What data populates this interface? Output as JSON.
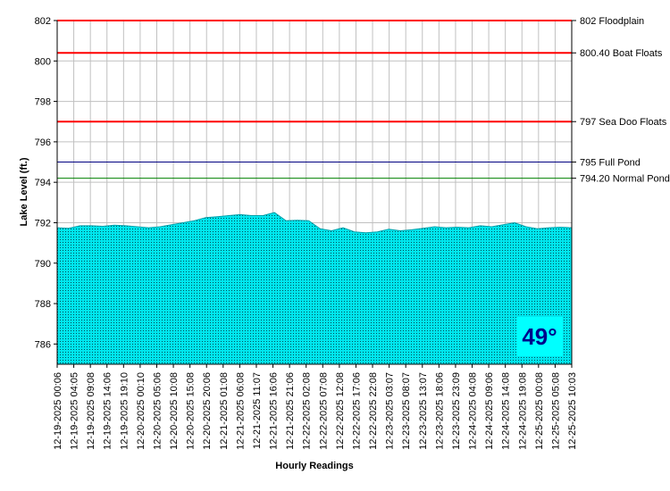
{
  "chart_data": {
    "type": "area",
    "title": "",
    "xlabel": "Hourly Readings",
    "ylabel": "Lake Level (ft.)",
    "ylim": [
      785,
      802
    ],
    "yticks": [
      786,
      788,
      790,
      792,
      794,
      796,
      798,
      800,
      802
    ],
    "grid": true,
    "colors": {
      "fill": "#00e6ee",
      "stipple": "#00505a",
      "grid": "#c0c0c0",
      "axis": "#000000"
    },
    "x_tick_labels": [
      "12-19-2025 00:06",
      "12-19-2025 04:05",
      "12-19-2025 09:08",
      "12-19-2025 14:06",
      "12-19-2025 19:10",
      "12-20-2025 00:10",
      "12-20-2025 05:06",
      "12-20-2025 10:08",
      "12-20-2025 15:08",
      "12-20-2025 20:06",
      "12-21-2025 01:08",
      "12-21-2025 06:08",
      "12-21-2025 11:07",
      "12-21-2025 16:06",
      "12-21-2025 21:06",
      "12-22-2025 02:08",
      "12-22-2025 07:08",
      "12-22-2025 12:08",
      "12-22-2025 17:06",
      "12-22-2025 22:08",
      "12-23-2025 03:07",
      "12-23-2025 08:07",
      "12-23-2025 13:07",
      "12-23-2025 18:06",
      "12-23-2025 23:09",
      "12-24-2025 04:08",
      "12-24-2025 09:06",
      "12-24-2025 14:08",
      "12-24-2025 19:08",
      "12-25-2025 00:08",
      "12-25-2025 05:08",
      "12-25-2025 10:03"
    ],
    "series": [
      {
        "values": [
          791.75,
          791.72,
          791.85,
          791.85,
          791.82,
          791.88,
          791.85,
          791.8,
          791.75,
          791.8,
          791.9,
          792.0,
          792.1,
          792.25,
          792.3,
          792.35,
          792.4,
          792.35,
          792.35,
          792.5,
          792.1,
          792.12,
          792.1,
          791.7,
          791.6,
          791.75,
          791.55,
          791.5,
          791.55,
          791.68,
          791.6,
          791.65,
          791.72,
          791.8,
          791.75,
          791.78,
          791.75,
          791.85,
          791.8,
          791.9,
          792.0,
          791.8,
          791.7,
          791.75,
          791.78,
          791.75
        ]
      }
    ],
    "reference_lines": [
      {
        "value": 802,
        "label": "802 Floodplain",
        "color": "#ff0000",
        "width": 2
      },
      {
        "value": 800.4,
        "label": "800.40 Boat Floats",
        "color": "#ff0000",
        "width": 2
      },
      {
        "value": 797,
        "label": "797 Sea Doo Floats",
        "color": "#ff0000",
        "width": 2
      },
      {
        "value": 795,
        "label": "795 Full Pond",
        "color": "#000080",
        "width": 1
      },
      {
        "value": 794.2,
        "label": "794.20 Normal Pond",
        "color": "#008000",
        "width": 1
      }
    ]
  },
  "temperature": {
    "text": "49°",
    "bg_color": "#00ffff",
    "text_color": "#00008b"
  }
}
